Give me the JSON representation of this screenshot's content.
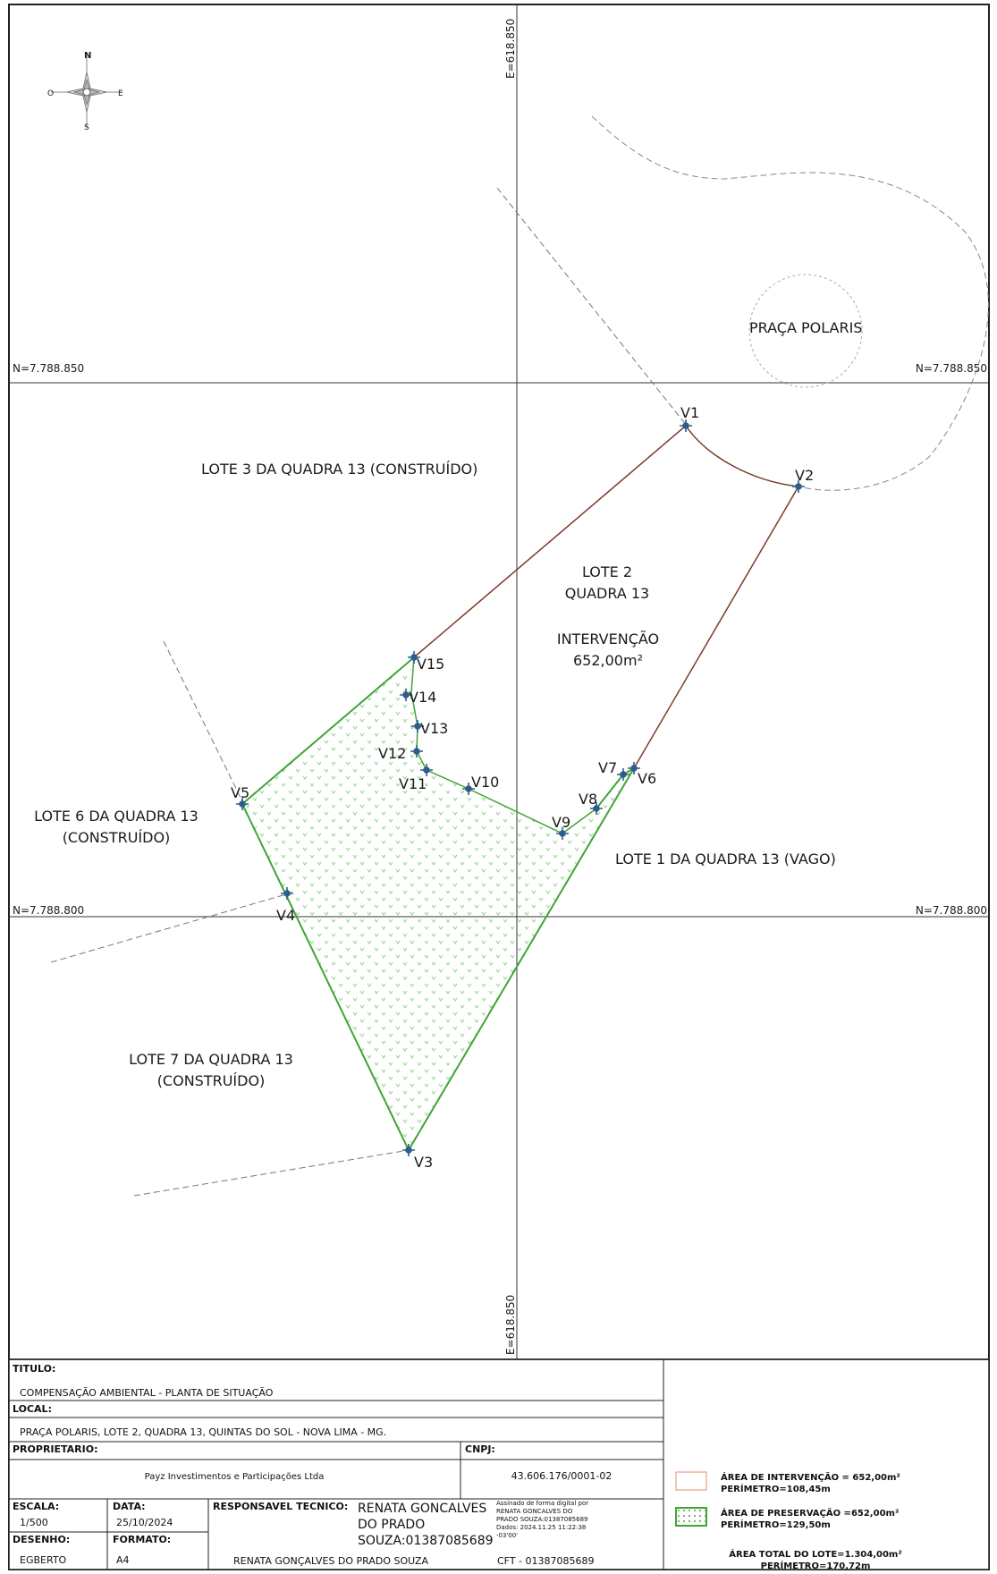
{
  "compass": {
    "north": "N",
    "east": "E",
    "south": "S",
    "west": "O"
  },
  "grid": {
    "easting_top": "E=618.850",
    "easting_bottom": "E=618.850",
    "northing_upper_left": "N=7.788.850",
    "northing_upper_right": "N=7.788.850",
    "northing_lower_left": "N=7.788.800",
    "northing_lower_right": "N=7.788.800"
  },
  "labels": {
    "praca": "PRAÇA POLARIS",
    "lote3": "LOTE 3 DA QUADRA 13 (CONSTRUÍDO)",
    "lote2_line1": "LOTE 2",
    "lote2_line2": "QUADRA 13",
    "intervencao_line1": "INTERVENÇÃO",
    "intervencao_line2": "652,00m²",
    "lote6_line1": "LOTE 6 DA QUADRA 13",
    "lote6_line2": "(CONSTRUÍDO)",
    "lote1": "LOTE 1 DA QUADRA 13 (VAGO)",
    "lote7_line1": "LOTE 7 DA QUADRA 13",
    "lote7_line2": "(CONSTRUÍDO)"
  },
  "vertices": [
    "V1",
    "V2",
    "V3",
    "V4",
    "V5",
    "V6",
    "V7",
    "V8",
    "V9",
    "V10",
    "V11",
    "V12",
    "V13",
    "V14",
    "V15"
  ],
  "title_block": {
    "titulo_label": "TITULO:",
    "titulo_value": "COMPENSAÇÃO AMBIENTAL - PLANTA DE SITUAÇÃO",
    "local_label": "LOCAL:",
    "local_value": "PRAÇA POLARIS, LOTE 2, QUADRA 13, QUINTAS DO SOL - NOVA LIMA - MG.",
    "proprietario_label": "PROPRIETARIO:",
    "proprietario_value": "Payz Investimentos e Participações Ltda",
    "cnpj_label": "CNPJ:",
    "cnpj_value": "43.606.176/0001-02",
    "escala_label": "ESCALA:",
    "escala_value": "1/500",
    "data_label": "DATA:",
    "data_value": "25/10/2024",
    "desenho_label": "DESENHO:",
    "desenho_value": "EGBERTO",
    "formato_label": "FORMATO:",
    "formato_value": "A4",
    "responsavel_label": "RESPONSAVEL TECNICO:",
    "signature_line1": "RENATA GONCALVES",
    "signature_line2": "DO PRADO",
    "signature_line3": "SOUZA:01387085689",
    "digital_line1": "Assinado de forma digital por",
    "digital_line2": "RENATA GONCALVES DO",
    "digital_line3": "PRADO SOUZA:01387085689",
    "digital_line4": "Dados: 2024.11.25 11:22:38",
    "digital_line5": "-03'00'",
    "responsavel_name": "RENATA GONÇALVES DO PRADO SOUZA",
    "cft": "CFT - 01387085689"
  },
  "legend": {
    "intervencao_area": "ÁREA DE INTERVENÇÃO = 652,00m²",
    "intervencao_perimetro": "PERÍMETRO=108,45m",
    "preservacao_area": "ÁREA DE PRESERVAÇÃO =652,00m²",
    "preservacao_perimetro": "PERÍMETRO=129,50m",
    "total_area": "ÁREA TOTAL DO LOTE=1.304,00m²",
    "total_perimetro": "PERÍMETRO=170,72m"
  },
  "colors": {
    "intervencao_line": "#7a3b2a",
    "preservacao_line": "#3fa535",
    "hatch": "#8fd18a",
    "vertex": "#2f5d8a",
    "intervencao_legend": "#e8a080"
  }
}
